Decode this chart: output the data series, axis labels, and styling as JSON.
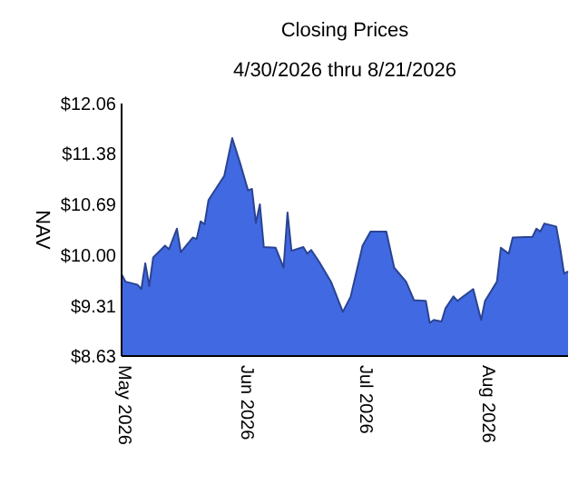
{
  "chart_data": {
    "type": "area",
    "title": "Closing Prices",
    "subtitle": "4/30/2026 thru 8/21/2026",
    "ylabel": "NAV",
    "x": [
      "2026-04-30",
      "2026-05-01",
      "2026-05-04",
      "2026-05-05",
      "2026-05-06",
      "2026-05-07",
      "2026-05-08",
      "2026-05-11",
      "2026-05-12",
      "2026-05-14",
      "2026-05-15",
      "2026-05-18",
      "2026-05-19",
      "2026-05-20",
      "2026-05-21",
      "2026-05-22",
      "2026-05-26",
      "2026-05-28",
      "2026-05-30",
      "2026-06-01",
      "2026-06-02",
      "2026-06-03",
      "2026-06-04",
      "2026-06-05",
      "2026-06-08",
      "2026-06-10",
      "2026-06-11",
      "2026-06-12",
      "2026-06-15",
      "2026-06-16",
      "2026-06-17",
      "2026-06-19",
      "2026-06-22",
      "2026-06-25",
      "2026-06-27",
      "2026-06-30",
      "2026-07-02",
      "2026-07-06",
      "2026-07-08",
      "2026-07-11",
      "2026-07-13",
      "2026-07-16",
      "2026-07-17",
      "2026-07-18",
      "2026-07-20",
      "2026-07-21",
      "2026-07-23",
      "2026-07-24",
      "2026-07-28",
      "2026-07-30",
      "2026-07-31",
      "2026-08-03",
      "2026-08-04",
      "2026-08-06",
      "2026-08-07",
      "2026-08-12",
      "2026-08-13",
      "2026-08-14",
      "2026-08-15",
      "2026-08-18",
      "2026-08-19",
      "2026-08-20",
      "2026-08-21"
    ],
    "series": [
      {
        "color": "#4169e1",
        "values": [
          9.74,
          9.64,
          9.6,
          9.54,
          9.89,
          9.58,
          9.97,
          10.13,
          10.08,
          10.36,
          10.04,
          10.24,
          10.22,
          10.46,
          10.42,
          10.75,
          11.08,
          11.59,
          11.25,
          10.88,
          10.9,
          10.44,
          10.69,
          10.11,
          10.1,
          9.83,
          10.58,
          10.06,
          10.11,
          10.02,
          10.07,
          9.91,
          9.64,
          9.23,
          9.44,
          10.13,
          10.32,
          10.32,
          9.83,
          9.64,
          9.39,
          9.38,
          9.08,
          9.12,
          9.1,
          9.28,
          9.44,
          9.38,
          9.54,
          9.12,
          9.38,
          9.64,
          10.1,
          10.02,
          10.24,
          10.25,
          10.36,
          10.32,
          10.43,
          10.39,
          10.1,
          9.75,
          9.78
        ]
      }
    ],
    "xlim": [
      "2026-04-30",
      "2026-08-21"
    ],
    "xticks": [
      {
        "value": "2026-05-01",
        "label": "May 2026"
      },
      {
        "value": "2026-06-01",
        "label": "Jun 2026"
      },
      {
        "value": "2026-07-01",
        "label": "Jul 2026"
      },
      {
        "value": "2026-08-01",
        "label": "Aug 2026"
      }
    ],
    "ylim": [
      8.63,
      12.06
    ],
    "yticks": [
      {
        "value": 8.63,
        "label": "$8.63"
      },
      {
        "value": 9.31,
        "label": "$9.31"
      },
      {
        "value": 10,
        "label": "$10.00"
      },
      {
        "value": 10.69,
        "label": "$10.69"
      },
      {
        "value": 11.38,
        "label": "$11.38"
      },
      {
        "value": 12.06,
        "label": "$12.06"
      }
    ]
  }
}
